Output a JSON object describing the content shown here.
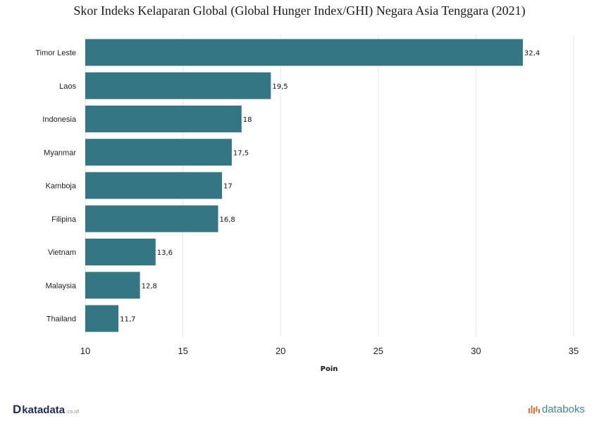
{
  "title": "Skor Indeks Kelaparan Global (Global Hunger Index/GHI) Negara Asia Tenggara (2021)",
  "chart_data": {
    "type": "bar",
    "orientation": "horizontal",
    "categories": [
      "Timor Leste",
      "Laos",
      "Indonesia",
      "Myanmar",
      "Kamboja",
      "Filipina",
      "Vietnam",
      "Malaysia",
      "Thailand"
    ],
    "values": [
      32.4,
      19.5,
      18,
      17.5,
      17,
      16.8,
      13.6,
      12.8,
      11.7
    ],
    "value_labels": [
      "32,4",
      "19,5",
      "18",
      "17,5",
      "17",
      "16,8",
      "13,6",
      "12,8",
      "11,7"
    ],
    "xlabel": "Poin",
    "ylabel": "",
    "xlim": [
      10,
      35
    ],
    "xticks": [
      10,
      15,
      20,
      25,
      30,
      35
    ],
    "grid": true,
    "bar_color": "#347684"
  },
  "footer": {
    "left_logo_mark": "D",
    "left_logo_text": "katadata",
    "left_logo_suffix": ".co.id",
    "right_logo_text": "databoks",
    "right_logo_icon": "databoks-bars-icon"
  }
}
